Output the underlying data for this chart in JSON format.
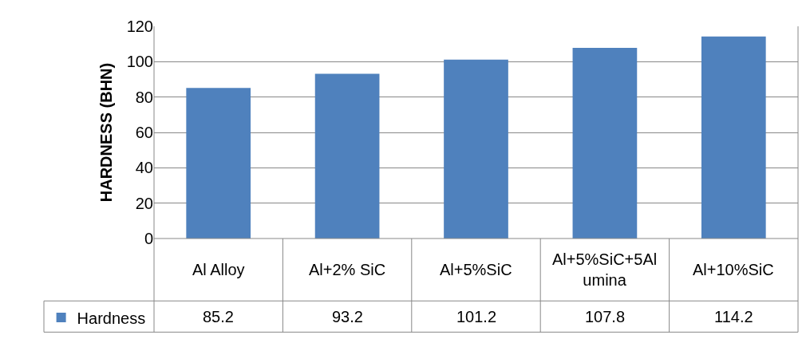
{
  "chart_data": {
    "type": "bar",
    "ylabel": "HARDNESS (BHN)",
    "categories": [
      "Al Alloy",
      "Al+2% SiC",
      "Al+5%SiC",
      "Al+5%SiC+5Alumina",
      "Al+10%SiC"
    ],
    "series": [
      {
        "name": "Hardness",
        "color": "#4f81bd",
        "values": [
          85.2,
          93.2,
          101.2,
          107.8,
          114.2
        ]
      }
    ],
    "ylim": [
      0,
      120
    ],
    "yticks": [
      0,
      20,
      40,
      60,
      80,
      100,
      120
    ],
    "grid": "y",
    "legend": "bottom left",
    "data_labels": true
  }
}
